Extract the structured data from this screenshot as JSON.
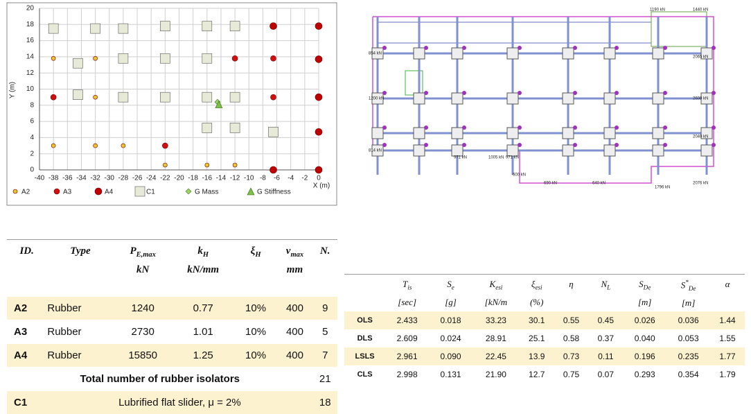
{
  "chart_data": {
    "type": "scatter",
    "x_label": "X (m)",
    "y_label": "Y (m)",
    "xlim": [
      -40,
      0
    ],
    "xticks": [
      -40,
      -38,
      -36,
      -34,
      -32,
      -30,
      -28,
      -26,
      -24,
      -22,
      -20,
      -18,
      -16,
      -14,
      -12,
      -10,
      -8,
      -6,
      -4,
      -2,
      0
    ],
    "ylim": [
      0,
      20
    ],
    "yticks": [
      0,
      2,
      4,
      6,
      8,
      10,
      12,
      14,
      16,
      18,
      20
    ],
    "grid": true,
    "legend": "bottom",
    "series": [
      {
        "name": "A2",
        "color": "#f2c12e",
        "marker": "circle",
        "size": 3,
        "x": [
          -38,
          -32,
          -32,
          -38,
          -32,
          -28,
          -22,
          -16,
          -12
        ],
        "values": [
          13.8,
          13.8,
          9,
          3,
          3,
          3,
          0.6,
          0.6,
          0.6
        ]
      },
      {
        "name": "A3",
        "color": "#d01010",
        "marker": "circle",
        "size": 4,
        "x": [
          -38,
          -22,
          -12,
          -6.5,
          -6.5
        ],
        "values": [
          9,
          3,
          13.8,
          13.8,
          9
        ]
      },
      {
        "name": "A4",
        "color": "#c00000",
        "marker": "circle",
        "size": 5,
        "x": [
          -6.5,
          -6.5,
          0,
          0,
          0,
          0,
          0
        ],
        "values": [
          17.8,
          0,
          17.8,
          13.7,
          9,
          4.7,
          0
        ]
      },
      {
        "name": "C1",
        "color": "#e6ead6",
        "marker": "square",
        "size": 7,
        "x": [
          -38,
          -32,
          -28,
          -22,
          -16,
          -12,
          -34.5,
          -28,
          -22,
          -16,
          -34.5,
          -28,
          -22,
          -16,
          -12,
          -16,
          -12,
          -6.5
        ],
        "values": [
          17.5,
          17.5,
          17.5,
          17.8,
          17.8,
          17.8,
          13.2,
          13.8,
          13.8,
          13.8,
          9.3,
          9,
          9,
          9,
          9,
          5.2,
          5.2,
          4.7
        ]
      },
      {
        "name": "G Mass",
        "color": "#9bd36a",
        "marker": "diamond",
        "size": 4,
        "x": [
          -14.5
        ],
        "values": [
          8.4
        ]
      },
      {
        "name": "G Stiffness",
        "color": "#7cc04a",
        "marker": "triangle",
        "size": 5,
        "x": [
          -14.3
        ],
        "values": [
          8.1
        ]
      }
    ]
  },
  "plan": {
    "labels": [
      "1190 kN",
      "1440 kN",
      "854 kN",
      "2065 kN",
      "1200 kN",
      "2600 kN",
      "814 kN",
      "2040 kN",
      "1005 kN",
      "971 kN",
      "971 kN",
      "600 kN",
      "690 kN",
      "640 kN",
      "1796 kN",
      "2076 kN"
    ]
  },
  "table1": {
    "headers": [
      {
        "symbol": "ID."
      },
      {
        "symbol": "Type"
      },
      {
        "symbol": "P",
        "sub": "E,max",
        "unit": "kN"
      },
      {
        "symbol": "k",
        "sub": "H",
        "unit": "kN/mm"
      },
      {
        "symbol": "ξ",
        "sub": "H"
      },
      {
        "symbol": "v",
        "sub": "max",
        "unit": "mm"
      },
      {
        "symbol": "N."
      }
    ],
    "rows": [
      [
        "A2",
        "Rubber",
        "1240",
        "0.77",
        "10%",
        "400",
        "9"
      ],
      [
        "A3",
        "Rubber",
        "2730",
        "1.01",
        "10%",
        "400",
        "5"
      ],
      [
        "A4",
        "Rubber",
        "15850",
        "1.25",
        "10%",
        "400",
        "7"
      ],
      [
        "Total number of rubber isolators",
        "21"
      ],
      [
        "C1",
        "Lubrified flat slider, μ = 2%",
        "18"
      ]
    ]
  },
  "table2": {
    "headers": [
      {
        "symbol": "T",
        "sub": "is",
        "unit": "[sec]"
      },
      {
        "symbol": "S",
        "sub": "e",
        "unit": "[g]"
      },
      {
        "symbol": "K",
        "sub": "esi",
        "unit": "[kN/m"
      },
      {
        "symbol": "ξ",
        "sub": "esi",
        "unit": "(%)"
      },
      {
        "symbol": "η"
      },
      {
        "symbol": "N",
        "sub": "L"
      },
      {
        "symbol": "S",
        "sub": "De",
        "unit": "[m]"
      },
      {
        "symbol": "S",
        "sup": "*",
        "sub": "De",
        "unit": "[m]"
      },
      {
        "symbol": "α"
      }
    ],
    "rows": [
      [
        "OLS",
        "2.433",
        "0.018",
        "33.23",
        "30.1",
        "0.55",
        "0.45",
        "0.026",
        "0.036",
        "1.44"
      ],
      [
        "DLS",
        "2.609",
        "0.024",
        "28.91",
        "25.1",
        "0.58",
        "0.37",
        "0.040",
        "0.053",
        "1.55"
      ],
      [
        "LSLS",
        "2.961",
        "0.090",
        "22.45",
        "13.9",
        "0.73",
        "0.11",
        "0.196",
        "0.235",
        "1.77"
      ],
      [
        "CLS",
        "2.998",
        "0.131",
        "21.90",
        "12.7",
        "0.75",
        "0.07",
        "0.293",
        "0.354",
        "1.79"
      ]
    ]
  }
}
